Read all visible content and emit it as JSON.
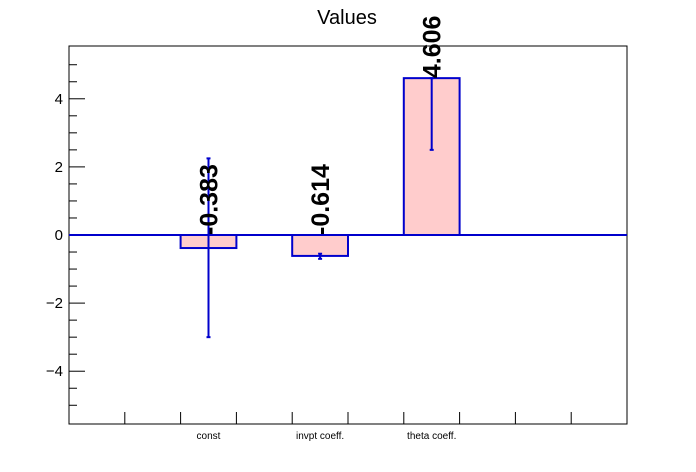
{
  "chart_data": {
    "type": "bar",
    "title": "Values",
    "xlabel": "",
    "ylabel": "",
    "categories": [
      "const",
      "invpt coeff.",
      "theta coeff."
    ],
    "values": [
      -0.383,
      -0.614,
      4.606
    ],
    "value_labels": [
      "-0.383",
      "-0.614",
      "4.606"
    ],
    "errors_low": [
      -3.0,
      -0.7,
      2.5
    ],
    "errors_high": [
      2.25,
      -0.55,
      4.606
    ],
    "ylim": [
      -5.55,
      5.55
    ],
    "y_ticks": [
      -4,
      -2,
      0,
      2,
      4
    ],
    "y_tick_labels": [
      "−4",
      "−2",
      "0",
      "2",
      "4"
    ],
    "grid": false,
    "legend": "none",
    "colors": {
      "bar_fill": "#ffcccc",
      "bar_edge": "#0000cc",
      "error_bar": "#0000cc",
      "zero_line": "#0000cc",
      "axis": "#000000"
    }
  }
}
